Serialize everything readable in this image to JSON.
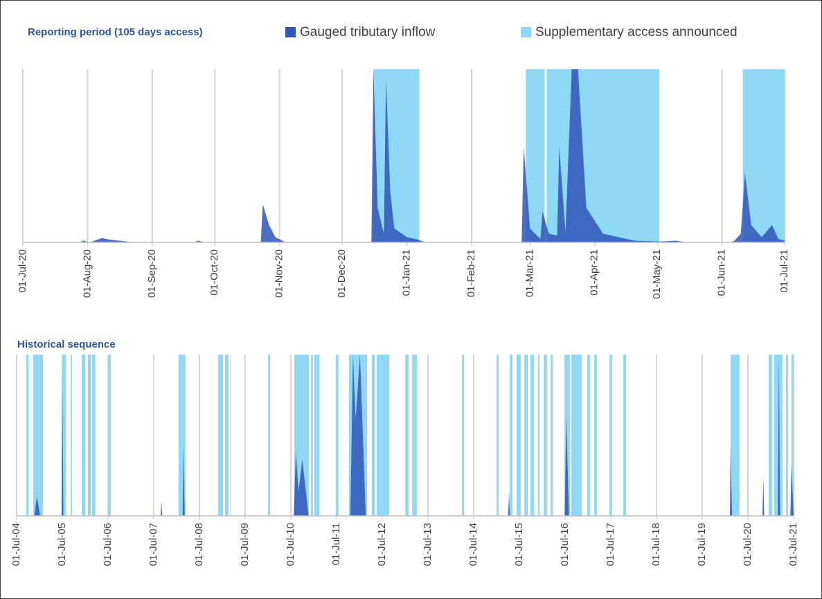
{
  "chart_data": [
    {
      "type": "area",
      "title": "Reporting period (105 days access)",
      "xlim": [
        "2020-07-01",
        "2021-07-01"
      ],
      "ylim": [
        0,
        100
      ],
      "grid": true,
      "xticks": [
        {
          "value": "2020-07-01",
          "label": "01-Jul-20"
        },
        {
          "value": "2020-08-01",
          "label": "01-Aug-20"
        },
        {
          "value": "2020-09-01",
          "label": "01-Sep-20"
        },
        {
          "value": "2020-10-01",
          "label": "01-Oct-20"
        },
        {
          "value": "2020-11-01",
          "label": "01-Nov-20"
        },
        {
          "value": "2020-12-01",
          "label": "01-Dec-20"
        },
        {
          "value": "2021-01-01",
          "label": "01-Jan-21"
        },
        {
          "value": "2021-02-01",
          "label": "01-Feb-21"
        },
        {
          "value": "2021-03-01",
          "label": "01-Mar-21"
        },
        {
          "value": "2021-04-01",
          "label": "01-Apr-21"
        },
        {
          "value": "2021-05-01",
          "label": "01-May-21"
        },
        {
          "value": "2021-06-01",
          "label": "01-Jun-21"
        },
        {
          "value": "2021-07-01",
          "label": "01-Jul-21"
        }
      ],
      "series": [
        {
          "name": "Gauged tributary inflow",
          "color": "#2f55b8",
          "x": [
            "2020-07-01",
            "2020-07-28",
            "2020-07-30",
            "2020-08-02",
            "2020-08-08",
            "2020-08-12",
            "2020-08-20",
            "2020-08-22",
            "2020-09-21",
            "2020-09-23",
            "2020-09-26",
            "2020-10-23",
            "2020-10-24",
            "2020-10-27",
            "2020-10-30",
            "2020-11-04",
            "2020-12-15",
            "2020-12-16",
            "2020-12-18",
            "2020-12-21",
            "2020-12-22",
            "2020-12-24",
            "2020-12-26",
            "2021-01-01",
            "2021-01-05",
            "2021-01-10",
            "2021-02-25",
            "2021-02-26",
            "2021-03-01",
            "2021-03-06",
            "2021-03-07",
            "2021-03-10",
            "2021-03-14",
            "2021-03-15",
            "2021-03-18",
            "2021-03-21",
            "2021-03-24",
            "2021-03-28",
            "2021-04-05",
            "2021-04-20",
            "2021-05-02",
            "2021-05-10",
            "2021-05-15",
            "2021-06-05",
            "2021-06-07",
            "2021-06-10",
            "2021-06-12",
            "2021-06-15",
            "2021-06-20",
            "2021-06-25",
            "2021-06-28",
            "2021-07-01"
          ],
          "values": [
            0,
            0,
            1,
            0,
            2.5,
            1.5,
            0.5,
            0,
            0,
            1,
            0,
            0,
            22,
            10,
            3,
            0,
            0,
            100,
            20,
            5,
            95,
            30,
            8,
            3,
            2,
            0,
            0,
            55,
            8,
            2,
            18,
            5,
            4,
            55,
            6,
            100,
            100,
            20,
            5,
            1,
            0.5,
            1,
            0,
            0,
            1,
            5,
            40,
            10,
            3,
            10,
            2,
            1
          ]
        },
        {
          "name": "Supplementary access announced",
          "color": "#8fd9f6",
          "periods": [
            [
              "2020-12-16",
              "2021-01-07"
            ],
            [
              "2021-02-27",
              "2021-03-08"
            ],
            [
              "2021-03-09",
              "2021-05-02"
            ],
            [
              "2021-06-11",
              "2021-07-01"
            ]
          ]
        }
      ]
    },
    {
      "type": "area",
      "title": "Historical sequence",
      "xlim": [
        "2004-07-01",
        "2021-07-01"
      ],
      "ylim": [
        0,
        100
      ],
      "grid": true,
      "xticks": [
        {
          "value": "2004-07-01",
          "label": "01-Jul-04"
        },
        {
          "value": "2005-07-01",
          "label": "01-Jul-05"
        },
        {
          "value": "2006-07-01",
          "label": "01-Jul-06"
        },
        {
          "value": "2007-07-01",
          "label": "01-Jul-07"
        },
        {
          "value": "2008-07-01",
          "label": "01-Jul-08"
        },
        {
          "value": "2009-07-01",
          "label": "01-Jul-09"
        },
        {
          "value": "2010-07-01",
          "label": "01-Jul-10"
        },
        {
          "value": "2011-07-01",
          "label": "01-Jul-11"
        },
        {
          "value": "2012-07-01",
          "label": "01-Jul-12"
        },
        {
          "value": "2013-07-01",
          "label": "01-Jul-13"
        },
        {
          "value": "2014-07-01",
          "label": "01-Jul-14"
        },
        {
          "value": "2015-07-01",
          "label": "01-Jul-15"
        },
        {
          "value": "2016-07-01",
          "label": "01-Jul-16"
        },
        {
          "value": "2017-07-01",
          "label": "01-Jul-17"
        },
        {
          "value": "2018-07-01",
          "label": "01-Jul-18"
        },
        {
          "value": "2019-07-01",
          "label": "01-Jul-19"
        },
        {
          "value": "2020-07-01",
          "label": "01-Jul-20"
        },
        {
          "value": "2021-07-01",
          "label": "01-Jul-21"
        }
      ],
      "series": [
        {
          "color": "#2f55b8",
          "x": [
            "2004-07-01",
            "2004-11-20",
            "2004-12-10",
            "2005-01-05",
            "2005-06-25",
            "2005-07-01",
            "2005-07-10",
            "2007-08-25",
            "2007-09-01",
            "2007-09-08",
            "2008-02-18",
            "2008-02-25",
            "2008-03-05",
            "2010-07-25",
            "2010-08-10",
            "2010-09-01",
            "2010-10-01",
            "2010-11-20",
            "2011-10-20",
            "2011-11-10",
            "2011-12-01",
            "2012-01-05",
            "2012-02-20",
            "2015-04-03",
            "2015-04-10",
            "2015-04-17",
            "2016-06-28",
            "2016-07-10",
            "2016-08-01",
            "2020-02-08",
            "2020-02-13",
            "2020-02-25",
            "2020-10-25",
            "2020-11-01",
            "2020-11-08",
            "2021-02-25",
            "2021-03-05",
            "2021-03-15",
            "2021-06-05",
            "2021-06-14",
            "2021-07-01"
          ],
          "values": [
            0,
            0,
            12,
            0,
            0,
            88,
            0,
            0,
            9,
            0,
            0,
            45,
            0,
            0,
            40,
            15,
            35,
            0,
            0,
            100,
            60,
            100,
            0,
            0,
            15,
            0,
            0,
            62,
            0,
            0,
            43,
            0,
            0,
            24,
            0,
            0,
            100,
            0,
            0,
            32,
            0
          ]
        },
        {
          "color": "#8fd9f6",
          "periods": [
            [
              "2004-09-16",
              "2004-10-03"
            ],
            [
              "2004-11-11",
              "2005-01-27"
            ],
            [
              "2005-07-01",
              "2005-07-29"
            ],
            [
              "2005-09-05",
              "2005-09-16"
            ],
            [
              "2005-12-03",
              "2006-01-01"
            ],
            [
              "2006-01-22",
              "2006-02-13"
            ],
            [
              "2006-02-24",
              "2006-03-23"
            ],
            [
              "2006-07-06",
              "2006-07-23"
            ],
            [
              "2008-01-16",
              "2008-03-11"
            ],
            [
              "2008-11-27",
              "2009-01-05"
            ],
            [
              "2009-01-22",
              "2009-02-18"
            ],
            [
              "2009-03-07",
              "2009-03-11"
            ],
            [
              "2010-01-01",
              "2010-01-17"
            ],
            [
              "2010-07-29",
              "2010-11-22"
            ],
            [
              "2010-12-08",
              "2010-12-25"
            ],
            [
              "2011-01-05",
              "2011-02-13"
            ],
            [
              "2011-06-26",
              "2011-07-17"
            ],
            [
              "2011-10-09",
              "2012-03-01"
            ],
            [
              "2012-04-08",
              "2012-05-01"
            ],
            [
              "2012-05-17",
              "2012-08-25"
            ],
            [
              "2013-01-01",
              "2013-01-28"
            ],
            [
              "2013-02-24",
              "2013-04-04"
            ],
            [
              "2014-03-30",
              "2014-04-16"
            ],
            [
              "2015-01-01",
              "2015-01-17"
            ],
            [
              "2015-04-15",
              "2015-05-07"
            ],
            [
              "2015-06-09",
              "2015-07-12"
            ],
            [
              "2015-08-09",
              "2015-09-06"
            ],
            [
              "2015-09-28",
              "2015-10-26"
            ],
            [
              "2015-11-28",
              "2015-12-09"
            ],
            [
              "2016-01-12",
              "2016-02-08"
            ],
            [
              "2016-03-08",
              "2016-03-25"
            ],
            [
              "2016-06-26",
              "2016-08-09"
            ],
            [
              "2016-08-20",
              "2016-11-11"
            ],
            [
              "2016-12-25",
              "2017-01-16"
            ],
            [
              "2017-02-18",
              "2017-03-12"
            ],
            [
              "2017-06-20",
              "2017-07-12"
            ],
            [
              "2017-10-09",
              "2017-10-31"
            ],
            [
              "2020-02-13",
              "2020-04-25"
            ],
            [
              "2020-12-14",
              "2021-01-10"
            ],
            [
              "2021-01-27",
              "2021-04-03"
            ],
            [
              "2021-05-01",
              "2021-05-17"
            ],
            [
              "2021-06-14",
              "2021-07-01"
            ]
          ]
        }
      ]
    }
  ]
}
